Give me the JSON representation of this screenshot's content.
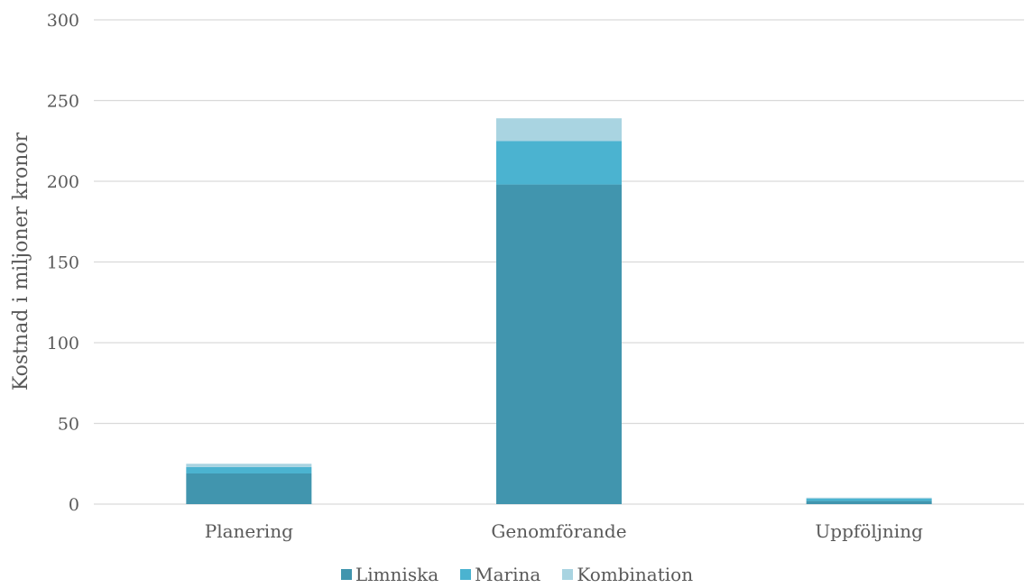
{
  "chart_data": {
    "type": "bar",
    "stacked": true,
    "categories": [
      "Planering",
      "Genomförande",
      "Uppföljning"
    ],
    "series": [
      {
        "name": "Limniska",
        "values": [
          19,
          198,
          2
        ],
        "color": "#4195ae"
      },
      {
        "name": "Marina",
        "values": [
          4,
          27,
          1.5
        ],
        "color": "#4bb3d0"
      },
      {
        "name": "Kombination",
        "values": [
          2,
          14,
          0.5
        ],
        "color": "#a9d4e1"
      }
    ],
    "title": "",
    "xlabel": "",
    "ylabel": "Kostnad i miljoner kronor",
    "ylim": [
      0,
      300
    ],
    "yticks": [
      "0",
      "50",
      "100",
      "150",
      "200",
      "250",
      "300"
    ],
    "ytick_values": [
      0,
      50,
      100,
      150,
      200,
      250,
      300
    ],
    "grid": true,
    "legend_position": "bottom"
  }
}
